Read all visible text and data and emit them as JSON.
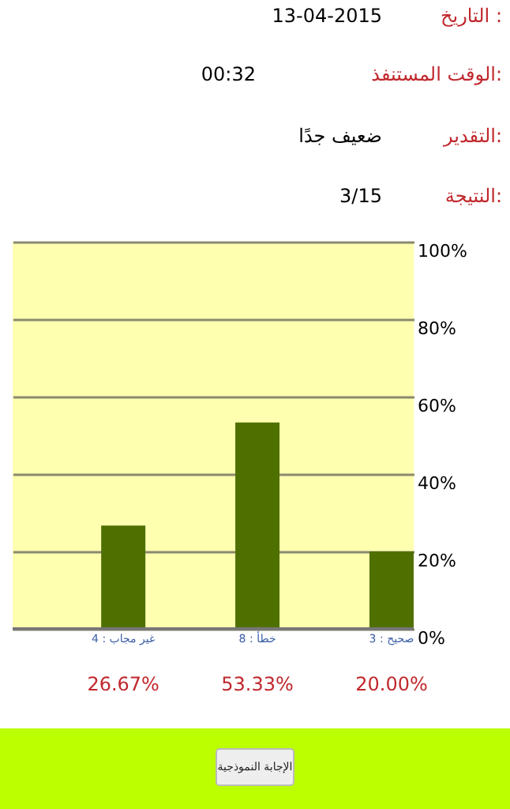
{
  "chart_data": {
    "type": "bar",
    "categories": [
      "غير مجاب : 4",
      "خطأ : 8",
      "صحيح : 3"
    ],
    "values": [
      26.67,
      53.33,
      20.0
    ],
    "value_labels": [
      "26.67%",
      "53.33%",
      "20.00%"
    ],
    "color": "#4f7000",
    "ylim": [
      0,
      100
    ],
    "yticks": [
      {
        "value": 0,
        "label": "0%"
      },
      {
        "value": 20,
        "label": "20%"
      },
      {
        "value": 40,
        "label": "40%"
      },
      {
        "value": 60,
        "label": "60%"
      },
      {
        "value": 80,
        "label": "80%"
      },
      {
        "value": 100,
        "label": "100%"
      }
    ],
    "grid": "y",
    "annotations": [
      "التاريخ :",
      "13-04-2015",
      "الوقت المستنفذ:",
      "00:32",
      "التقدير:",
      "ضعيف جدًا",
      "النتيجة:",
      "3/15",
      "الإجابة النموذجية"
    ]
  }
}
